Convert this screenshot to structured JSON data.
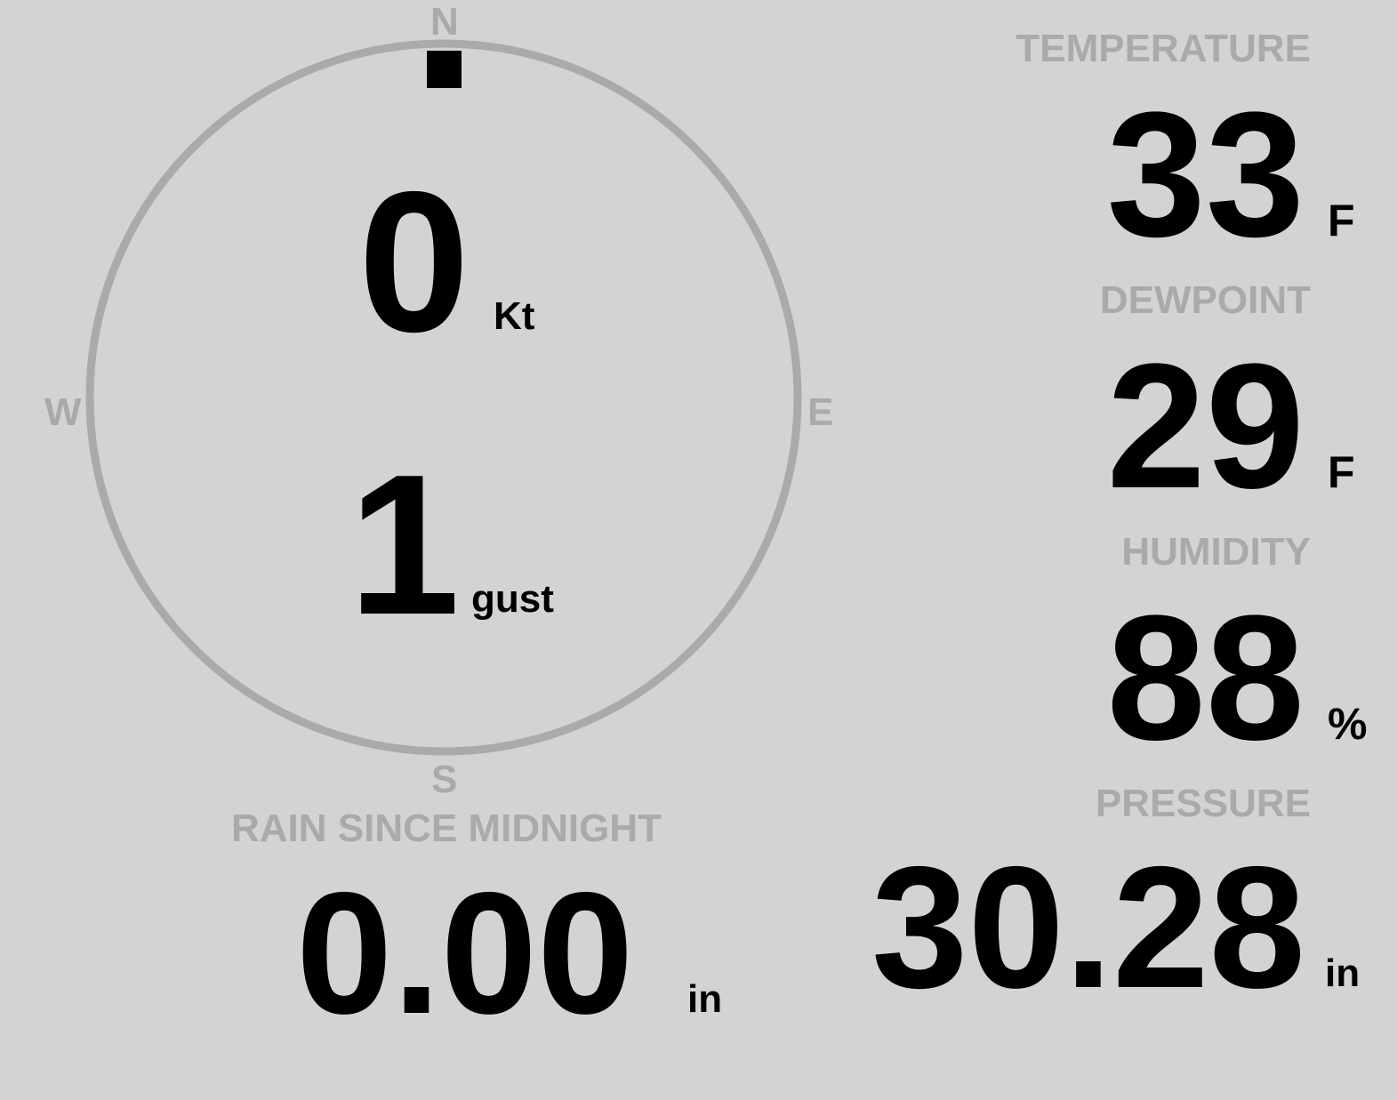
{
  "colors": {
    "background": "#d3d3d3",
    "label": "#aaaaaa",
    "value": "#000000",
    "compass_ring": "#aaaaaa",
    "wind_marker": "#000000"
  },
  "compass": {
    "north": "N",
    "east": "E",
    "south": "S",
    "west": "W",
    "wind_direction_deg": 0
  },
  "wind": {
    "speed": "0",
    "speed_unit": "Kt",
    "gust": "1",
    "gust_unit": "gust"
  },
  "temperature": {
    "label": "TEMPERATURE",
    "value": "33",
    "unit": "F"
  },
  "dewpoint": {
    "label": "DEWPOINT",
    "value": "29",
    "unit": "F"
  },
  "humidity": {
    "label": "HUMIDITY",
    "value": "88",
    "unit": "%"
  },
  "pressure": {
    "label": "PRESSURE",
    "value": "30.28",
    "unit": "in"
  },
  "rain": {
    "label": "RAIN SINCE MIDNIGHT",
    "value": "0.00",
    "unit": "in"
  }
}
